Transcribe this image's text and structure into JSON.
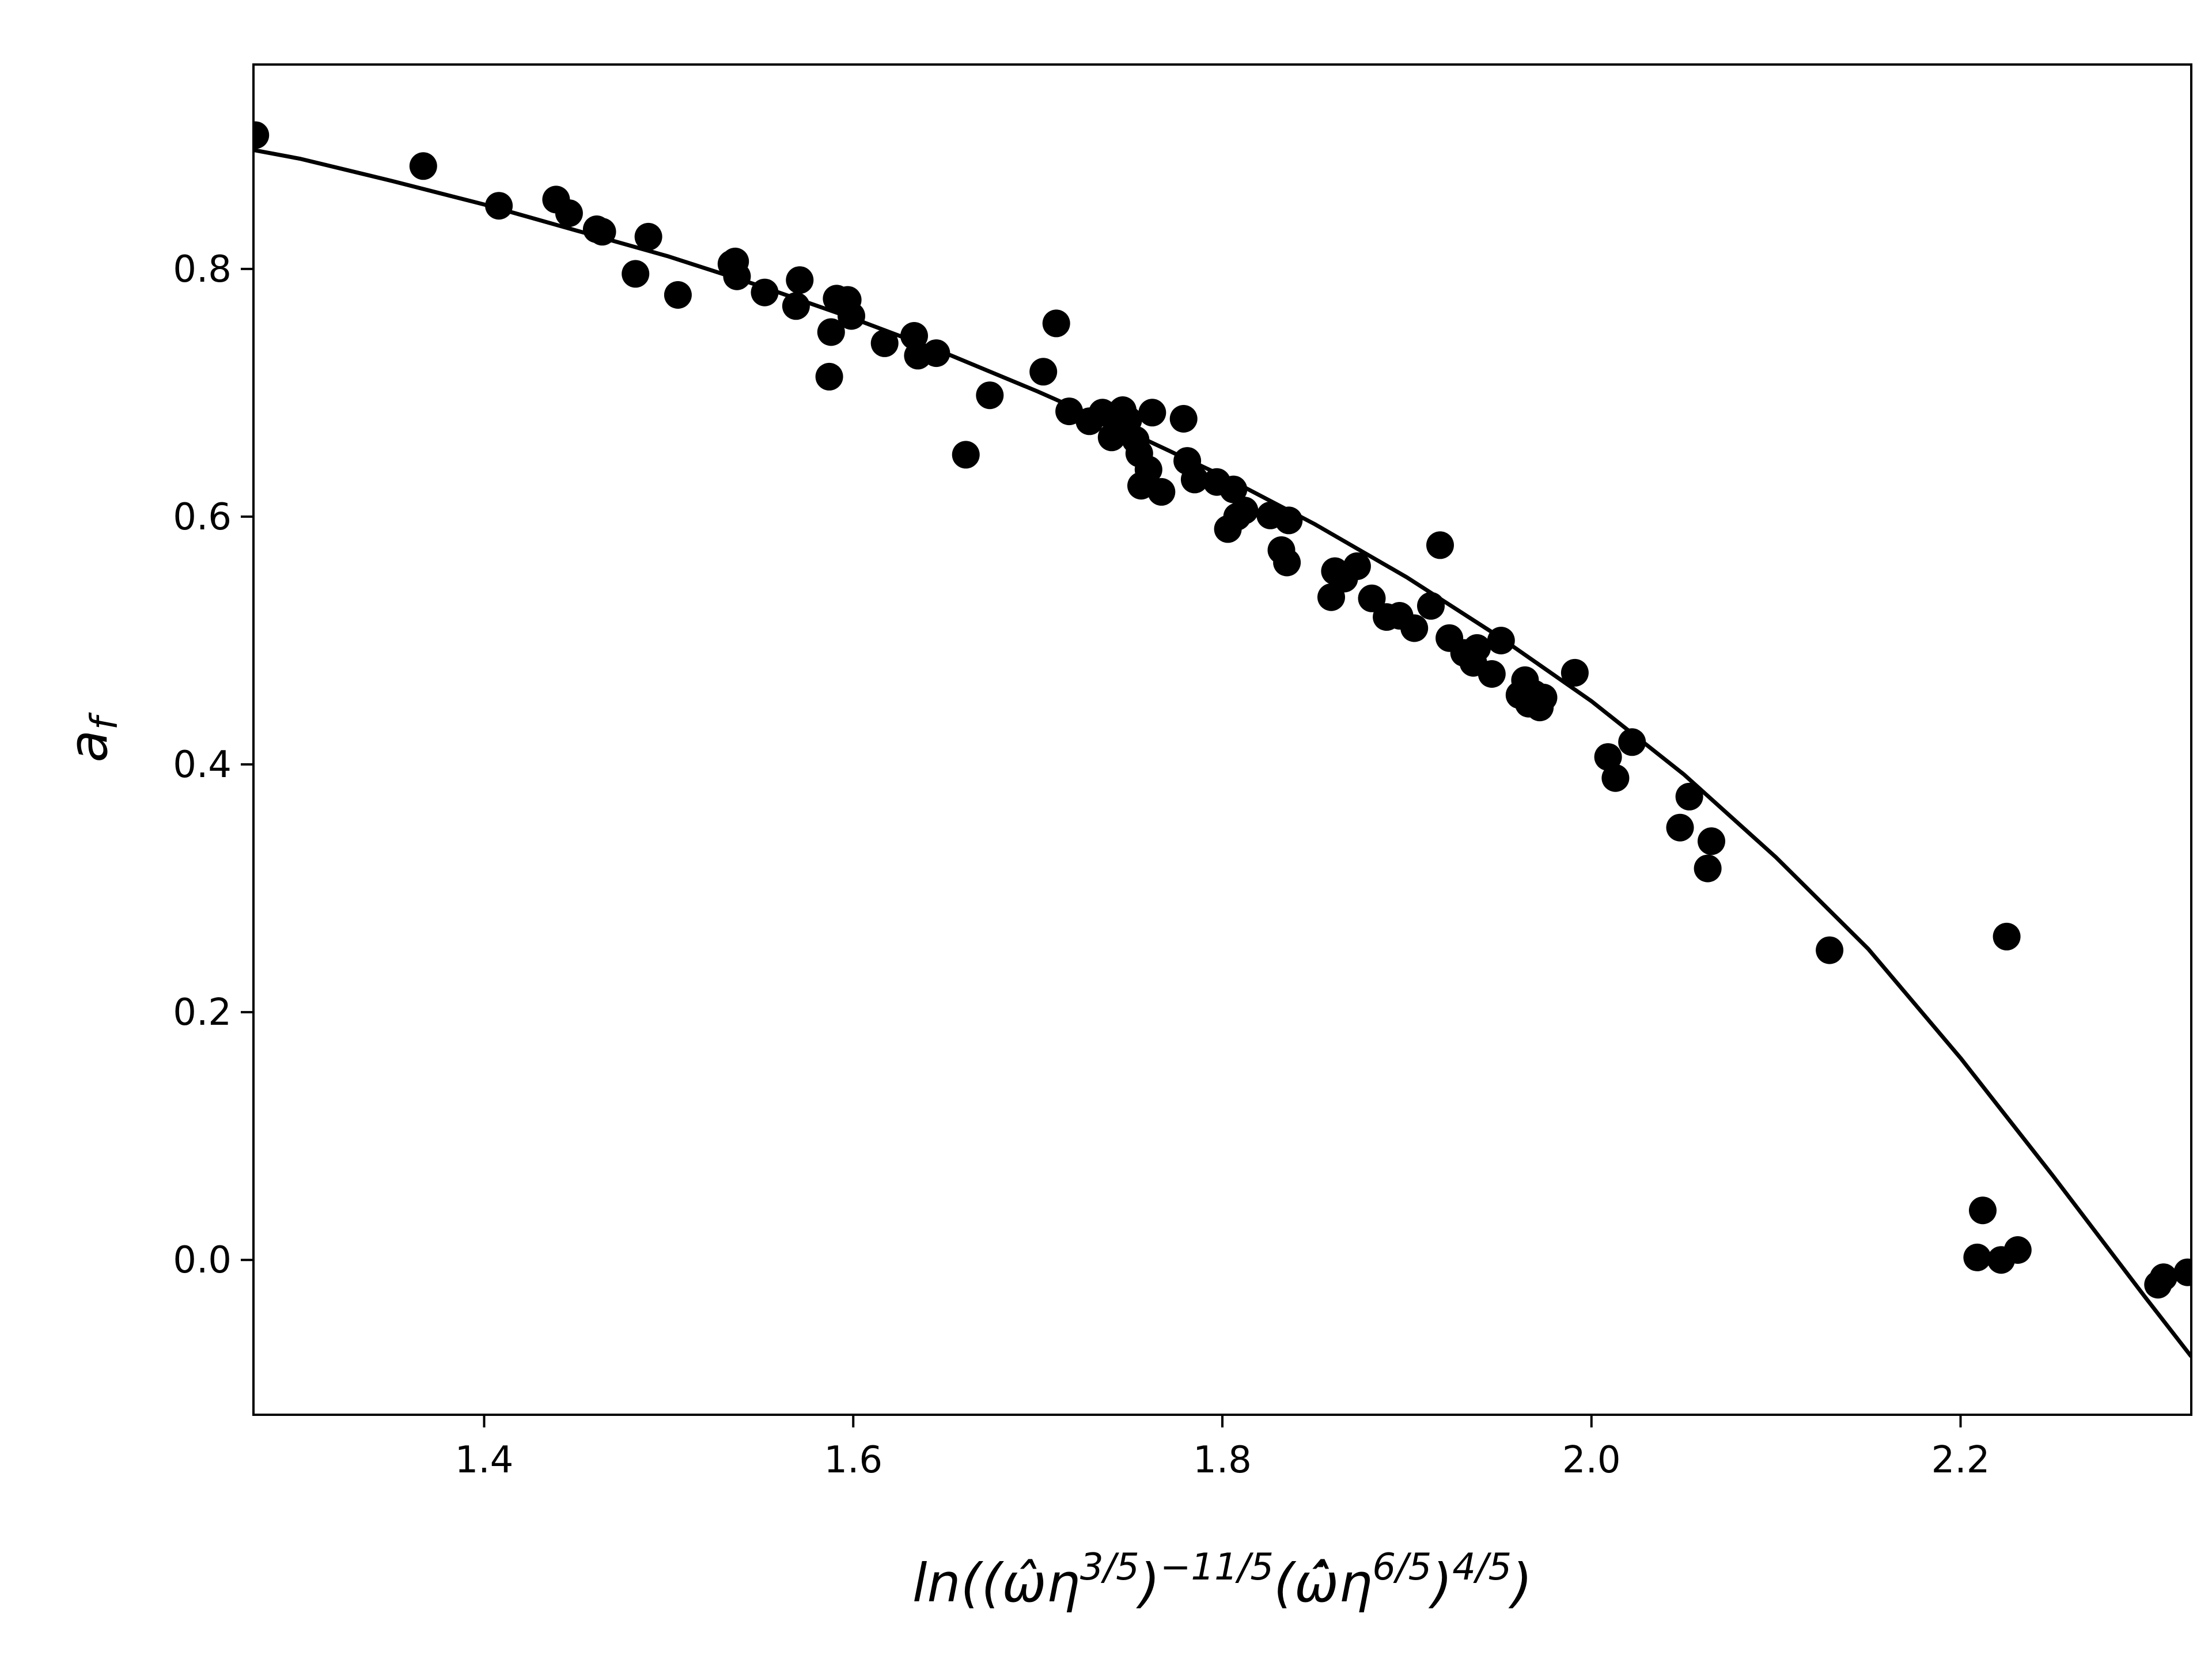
{
  "chart_data": {
    "type": "scatter",
    "title": "",
    "xlabel": {
      "base": "ln((",
      "omega": "ω̂",
      "eta": "η",
      "exp1": "3/5",
      "exp2": "−11/5",
      "omegadot": "ω̂̇",
      "exp3": "6/5",
      "exp4": "4/5"
    },
    "ylabel": {
      "base": "a",
      "sub": "f"
    },
    "xlim": [
      1.275,
      2.325
    ],
    "ylim": [
      -0.125,
      0.965
    ],
    "xticks": [
      1.4,
      1.6,
      1.8,
      2.0,
      2.2
    ],
    "yticks": [
      0.0,
      0.2,
      0.4,
      0.6,
      0.8
    ],
    "xtick_labels": [
      "1.4",
      "1.6",
      "1.8",
      "2.0",
      "2.2"
    ],
    "ytick_labels": [
      "0.0",
      "0.2",
      "0.4",
      "0.6",
      "0.8"
    ],
    "grid": false,
    "legend": "none",
    "colors": {
      "points": "#000000",
      "line": "#000000"
    },
    "series": [
      {
        "kind": "scatter",
        "points": [
          [
            1.276,
            0.908
          ],
          [
            1.367,
            0.883
          ],
          [
            1.408,
            0.851
          ],
          [
            1.439,
            0.856
          ],
          [
            1.446,
            0.845
          ],
          [
            1.461,
            0.832
          ],
          [
            1.464,
            0.83
          ],
          [
            1.482,
            0.796
          ],
          [
            1.489,
            0.826
          ],
          [
            1.505,
            0.779
          ],
          [
            1.534,
            0.804
          ],
          [
            1.537,
            0.794
          ],
          [
            1.536,
            0.806
          ],
          [
            1.552,
            0.781
          ],
          [
            1.569,
            0.77
          ],
          [
            1.571,
            0.791
          ],
          [
            1.587,
            0.713
          ],
          [
            1.588,
            0.749
          ],
          [
            1.591,
            0.776
          ],
          [
            1.597,
            0.775
          ],
          [
            1.599,
            0.762
          ],
          [
            1.617,
            0.74
          ],
          [
            1.633,
            0.746
          ],
          [
            1.635,
            0.73
          ],
          [
            1.645,
            0.732
          ],
          [
            1.661,
            0.65
          ],
          [
            1.674,
            0.698
          ],
          [
            1.703,
            0.717
          ],
          [
            1.71,
            0.756
          ],
          [
            1.717,
            0.685
          ],
          [
            1.728,
            0.677
          ],
          [
            1.735,
            0.684
          ],
          [
            1.74,
            0.664
          ],
          [
            1.742,
            0.682
          ],
          [
            1.746,
            0.686
          ],
          [
            1.749,
            0.678
          ],
          [
            1.753,
            0.662
          ],
          [
            1.755,
            0.651
          ],
          [
            1.756,
            0.625
          ],
          [
            1.76,
            0.638
          ],
          [
            1.762,
            0.684
          ],
          [
            1.767,
            0.62
          ],
          [
            1.779,
            0.679
          ],
          [
            1.781,
            0.645
          ],
          [
            1.785,
            0.63
          ],
          [
            1.797,
            0.628
          ],
          [
            1.803,
            0.59
          ],
          [
            1.806,
            0.622
          ],
          [
            1.808,
            0.6
          ],
          [
            1.812,
            0.605
          ],
          [
            1.826,
            0.601
          ],
          [
            1.832,
            0.573
          ],
          [
            1.835,
            0.563
          ],
          [
            1.836,
            0.597
          ],
          [
            1.859,
            0.535
          ],
          [
            1.861,
            0.556
          ],
          [
            1.866,
            0.55
          ],
          [
            1.873,
            0.56
          ],
          [
            1.881,
            0.534
          ],
          [
            1.889,
            0.519
          ],
          [
            1.896,
            0.52
          ],
          [
            1.904,
            0.51
          ],
          [
            1.913,
            0.528
          ],
          [
            1.918,
            0.577
          ],
          [
            1.923,
            0.502
          ],
          [
            1.931,
            0.49
          ],
          [
            1.936,
            0.482
          ],
          [
            1.938,
            0.494
          ],
          [
            1.946,
            0.473
          ],
          [
            1.951,
            0.5
          ],
          [
            1.961,
            0.456
          ],
          [
            1.964,
            0.468
          ],
          [
            1.966,
            0.449
          ],
          [
            1.969,
            0.457
          ],
          [
            1.972,
            0.446
          ],
          [
            1.974,
            0.454
          ],
          [
            1.991,
            0.474
          ],
          [
            2.009,
            0.406
          ],
          [
            2.013,
            0.389
          ],
          [
            2.022,
            0.418
          ],
          [
            2.048,
            0.349
          ],
          [
            2.053,
            0.374
          ],
          [
            2.063,
            0.316
          ],
          [
            2.065,
            0.338
          ],
          [
            2.129,
            0.25
          ],
          [
            2.209,
            0.002
          ],
          [
            2.212,
            0.04
          ],
          [
            2.222,
            0.0
          ],
          [
            2.225,
            0.261
          ],
          [
            2.231,
            0.008
          ],
          [
            2.307,
            -0.02
          ],
          [
            2.31,
            -0.014
          ],
          [
            2.323,
            -0.01
          ]
        ]
      },
      {
        "kind": "line",
        "points": [
          [
            1.275,
            0.896
          ],
          [
            1.3,
            0.889
          ],
          [
            1.35,
            0.871
          ],
          [
            1.4,
            0.852
          ],
          [
            1.45,
            0.831
          ],
          [
            1.5,
            0.81
          ],
          [
            1.55,
            0.786
          ],
          [
            1.6,
            0.76
          ],
          [
            1.65,
            0.732
          ],
          [
            1.7,
            0.701
          ],
          [
            1.75,
            0.668
          ],
          [
            1.8,
            0.633
          ],
          [
            1.85,
            0.594
          ],
          [
            1.9,
            0.551
          ],
          [
            1.95,
            0.503
          ],
          [
            2.0,
            0.451
          ],
          [
            2.05,
            0.392
          ],
          [
            2.1,
            0.325
          ],
          [
            2.15,
            0.251
          ],
          [
            2.2,
            0.163
          ],
          [
            2.25,
            0.068
          ],
          [
            2.3,
            -0.03
          ],
          [
            2.325,
            -0.078
          ]
        ]
      }
    ]
  }
}
